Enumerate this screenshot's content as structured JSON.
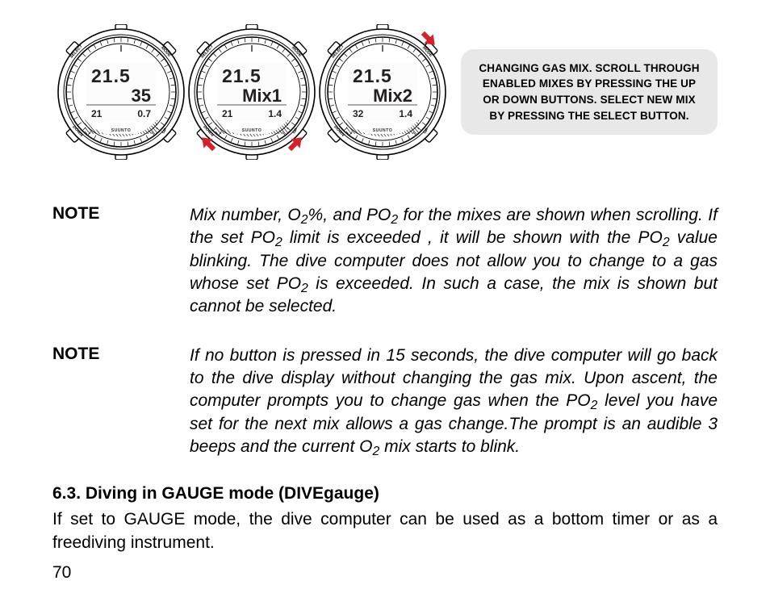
{
  "figure": {
    "watches": [
      {
        "line1": "21.5",
        "line2": "35",
        "bottom_left": "21",
        "bottom_right": "0.7",
        "brand": "SUUNTO",
        "labels": {
          "top_left": "SELECT",
          "top_right": "MODE",
          "bottom_left": "DOWN",
          "bottom_right": "UP"
        },
        "arrows": []
      },
      {
        "line1": "21.5",
        "line2": "Mix1",
        "bottom_left": "21",
        "bottom_right": "1.4",
        "brand": "SUUNTO",
        "labels": {
          "top_left": "SELECT",
          "top_right": "MODE",
          "bottom_left": "DOWN",
          "bottom_right": "UP"
        },
        "arrows": [
          "bottom-left",
          "bottom-right"
        ]
      },
      {
        "line1": "21.5",
        "line2": "Mix2",
        "bottom_left": "32",
        "bottom_right": "1.4",
        "brand": "SUUNTO",
        "labels": {
          "top_left": "SELECT",
          "top_right": "MODE",
          "bottom_left": "DOWN",
          "bottom_right": "UP"
        },
        "arrows": [
          "top-right"
        ]
      }
    ],
    "callout": "CHANGING GAS MIX. SCROLL THROUGH ENABLED MIXES BY PRESSING THE UP OR DOWN BUTTONS. SELECT NEW MIX BY PRESSING THE SELECT BUTTON.",
    "arrow_color": "#d2232a",
    "watch_stroke": "#000000",
    "watch_fill": "#ffffff",
    "callout_bg": "#e8e8e8"
  },
  "notes": [
    {
      "label": "NOTE",
      "body_html": "Mix number, O<sub>2</sub>%, and PO<sub>2</sub> for the mixes are shown when scrolling. If the set PO<sub>2</sub> limit is exceeded , it will be shown with the PO<sub>2</sub> value blinking. The dive computer does not allow you to change to a gas whose set PO<sub>2</sub> is exceeded. In such a case, the mix is shown but cannot be selected."
    },
    {
      "label": "NOTE",
      "body_html": "If no button is pressed in 15 seconds, the dive computer will go back to the dive display without changing the gas mix. Upon ascent, the computer prompts you to change gas when the PO<sub>2</sub> level you have set for the next mix allows a gas change.The prompt is an audible 3 beeps and the current O<sub>2</sub> mix starts to blink."
    }
  ],
  "section": {
    "title": "6.3. Diving in GAUGE mode (DIVEgauge)",
    "body": "If set to GAUGE mode, the dive computer can be used as a bottom timer or as a freediving instrument."
  },
  "page_number": "70"
}
